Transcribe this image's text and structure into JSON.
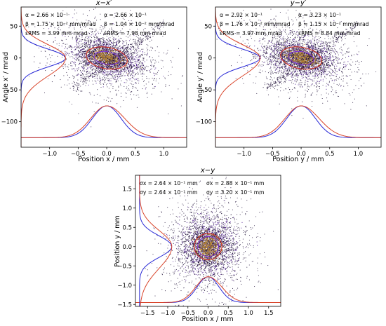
{
  "colors": {
    "blue": "#2a2ad6",
    "red": "#d9452b",
    "dots_outer": "#1a0b33",
    "dots_mid": "#5a2a9a",
    "dots_core": "#b8862b",
    "contour_inner": "#7a2fd0",
    "contour_outer": "#d42a1a"
  },
  "chart_data": [
    {
      "type": "scatter",
      "panel": "x-xp",
      "title": "x−x′",
      "xlabel": "Position x / mm",
      "ylabel": "Angle x′ / mrad",
      "xlim": [
        -1.5,
        1.4
      ],
      "ylim": [
        -140,
        80
      ],
      "xticks": [
        -1.0,
        -0.5,
        0.0,
        0.5,
        1.0
      ],
      "xtick_labels": [
        "−1.0",
        "−0.5",
        "0.0",
        "0.5",
        "1.0"
      ],
      "yticks": [
        -100,
        -50,
        0,
        50
      ],
      "ytick_labels": [
        "−100",
        "−50",
        "0",
        "50"
      ],
      "grid": false,
      "annotations_left": [
        "α = 2.66 × 10⁻¹",
        "β = 1.75 × 10⁻² mm/mrad",
        "εRMS = 3.99 mm mrad"
      ],
      "annotations_right": [
        "α = 2.66 × 10⁻¹",
        "β = 1.04 × 10⁻² mm/mrad",
        "εRMS = 7.98 mm mrad"
      ],
      "core": {
        "cx": 0.0,
        "cy": 0,
        "sx": 0.26,
        "sy": 12,
        "rho": -0.35
      },
      "halo": {
        "cx": 0.0,
        "cy": 0,
        "sx": 0.3,
        "sy": 16,
        "rho": -0.25
      },
      "tail": {
        "x_from": -0.6,
        "x_to": 1.0,
        "y_at_from": -48,
        "y_at_to": 55
      },
      "contours": [
        {
          "color": "purple",
          "rx": 0.22,
          "ry": 10,
          "tilt": -0.25
        },
        {
          "color": "red",
          "rx": 0.36,
          "ry": 17,
          "tilt": -0.25
        }
      ],
      "profiles": {
        "bottom_base": -125,
        "bottom_peak": -75,
        "left_base": -1.5,
        "left_peak": -0.72,
        "sigma_x": 0.25,
        "sigma_y": 14
      }
    },
    {
      "type": "scatter",
      "panel": "y-yp",
      "title": "y−y′",
      "xlabel": "Position y / mm",
      "ylabel": "Angle y′ / mrad",
      "xlim": [
        -1.5,
        1.4
      ],
      "ylim": [
        -140,
        80
      ],
      "xticks": [
        -1.0,
        -0.5,
        0.0,
        0.5,
        1.0
      ],
      "xtick_labels": [
        "−1.0",
        "−0.5",
        "0.0",
        "0.5",
        "1.0"
      ],
      "yticks": [
        -100,
        -50,
        0,
        50
      ],
      "ytick_labels": [
        "−100",
        "−50",
        "0",
        "50"
      ],
      "grid": false,
      "annotations_left": [
        "α = 2.92 × 10⁻¹",
        "β = 1.76 × 10⁻² mm/mrad",
        "εRMS = 3.97 mm mrad"
      ],
      "annotations_right": [
        "α = 3.23 × 10⁻¹",
        "β = 1.15 × 10⁻² mm/mrad",
        "εRMS = 8.84 mm mrad"
      ],
      "core": {
        "cx": 0.0,
        "cy": 0,
        "sx": 0.26,
        "sy": 12,
        "rho": -0.35
      },
      "halo": {
        "cx": 0.0,
        "cy": 0,
        "sx": 0.3,
        "sy": 16,
        "rho": -0.25
      },
      "tail": {
        "x_from": -0.6,
        "x_to": 1.0,
        "y_at_from": -48,
        "y_at_to": 55
      },
      "contours": [
        {
          "color": "purple",
          "rx": 0.22,
          "ry": 10,
          "tilt": -0.25
        },
        {
          "color": "red",
          "rx": 0.36,
          "ry": 17,
          "tilt": -0.25
        }
      ],
      "profiles": {
        "bottom_base": -125,
        "bottom_peak": -75,
        "left_base": -1.5,
        "left_peak": -0.72,
        "sigma_x": 0.25,
        "sigma_y": 14
      }
    },
    {
      "type": "scatter",
      "panel": "x-y",
      "title": "x−y",
      "xlabel": "Position x / mm",
      "ylabel": "Position y / mm",
      "xlim": [
        -1.8,
        1.8
      ],
      "ylim": [
        -1.55,
        1.85
      ],
      "xticks": [
        -1.5,
        -1.0,
        -0.5,
        0.0,
        0.5,
        1.0,
        1.5
      ],
      "xtick_labels": [
        "−1.5",
        "−1.0",
        "−0.5",
        "0.0",
        "0.5",
        "1.0",
        "1.5"
      ],
      "yticks": [
        -1.5,
        -1.0,
        -0.5,
        0.0,
        0.5,
        1.0,
        1.5
      ],
      "ytick_labels": [
        "−1.5",
        "−1.0",
        "−0.5",
        "0.0",
        "0.5",
        "1.0",
        "1.5"
      ],
      "grid": false,
      "annotations_left": [
        "σx = 2.64 × 10⁻¹ mm",
        "σy = 2.64 × 10⁻¹ mm"
      ],
      "annotations_right": [
        "σx = 2.88 × 10⁻¹ mm",
        "σy = 3.20 × 10⁻¹ mm"
      ],
      "core": {
        "cx": 0.0,
        "cy": 0.0,
        "sx": 0.28,
        "sy": 0.3,
        "rho": 0
      },
      "halo": {
        "cx": 0.0,
        "cy": 0.0,
        "sx": 0.34,
        "sy": 0.36,
        "rho": 0
      },
      "tail": null,
      "contours": [
        {
          "color": "purple",
          "rx": 0.26,
          "ry": 0.26,
          "tilt": 0
        },
        {
          "color": "red",
          "rx": 0.34,
          "ry": 0.34,
          "tilt": 0
        }
      ],
      "profiles": {
        "bottom_base": -1.45,
        "bottom_peak": -0.78,
        "left_base": -1.7,
        "left_peak": -0.9,
        "sigma_x": 0.27,
        "sigma_y": 0.28
      }
    }
  ]
}
